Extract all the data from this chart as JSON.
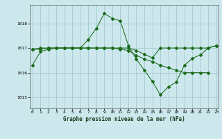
{
  "title": "Graphe pression niveau de la mer (hPa)",
  "bg_color": "#cce8ed",
  "grid_color": "#aacdd4",
  "line_color": "#1a6b1a",
  "xlim": [
    -0.3,
    23.3
  ],
  "ylim": [
    1014.55,
    1018.75
  ],
  "yticks": [
    1015,
    1016,
    1017,
    1018
  ],
  "xticks": [
    0,
    1,
    2,
    3,
    4,
    5,
    6,
    7,
    8,
    9,
    10,
    11,
    12,
    13,
    14,
    15,
    16,
    17,
    18,
    19,
    20,
    21,
    22,
    23
  ],
  "series1_x": [
    0,
    1,
    2,
    3,
    4,
    5,
    6,
    7,
    8,
    9,
    10,
    11,
    12,
    13,
    14,
    15,
    16,
    17,
    18,
    19,
    20,
    21,
    22,
    23
  ],
  "series1_y": [
    1016.3,
    1016.85,
    1016.95,
    1017.0,
    1017.0,
    1017.0,
    1017.0,
    1017.35,
    1017.8,
    1018.4,
    1018.2,
    1018.1,
    1017.1,
    1016.55,
    1016.1,
    1015.65,
    1015.1,
    1015.42,
    1015.62,
    1016.3,
    1016.58,
    1016.72,
    1017.0,
    1017.1
  ],
  "series2_x": [
    0,
    1,
    2,
    3,
    4,
    5,
    6,
    7,
    8,
    9,
    10,
    11,
    12,
    13,
    14,
    15,
    16,
    17,
    18,
    19,
    20,
    21,
    22,
    23
  ],
  "series2_y": [
    1016.95,
    1017.0,
    1017.0,
    1017.0,
    1017.0,
    1017.0,
    1017.0,
    1017.0,
    1017.0,
    1017.0,
    1017.0,
    1017.0,
    1017.0,
    1016.9,
    1016.75,
    1016.6,
    1017.0,
    1017.0,
    1017.0,
    1017.0,
    1017.0,
    1017.0,
    1017.0,
    1017.1
  ],
  "series3_x": [
    0,
    1,
    2,
    3,
    4,
    5,
    6,
    7,
    8,
    9,
    10,
    11,
    12,
    13,
    14,
    15,
    16,
    17,
    18,
    19,
    20,
    21,
    22,
    23
  ],
  "series3_y": [
    1016.95,
    1016.95,
    1017.0,
    1017.0,
    1017.0,
    1017.0,
    1017.0,
    1017.0,
    1017.0,
    1017.0,
    1017.0,
    1016.95,
    1016.9,
    1016.7,
    1016.55,
    1016.45,
    1016.3,
    1016.2,
    1016.1,
    1016.0,
    1016.0,
    1016.0,
    1016.0,
    null
  ]
}
